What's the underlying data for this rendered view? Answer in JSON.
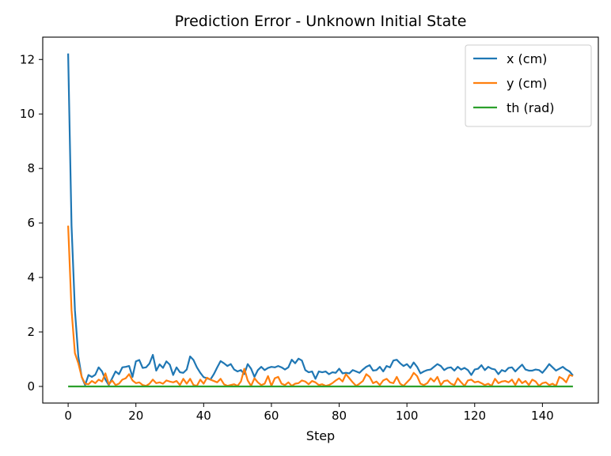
{
  "chart_data": {
    "type": "line",
    "title": "Prediction Error - Unknown Initial State",
    "xlabel": "Step",
    "ylabel": "",
    "xlim": [
      -7.5,
      156.5
    ],
    "ylim": [
      -0.61,
      12.82
    ],
    "xticks": [
      0,
      20,
      40,
      60,
      80,
      100,
      120,
      140
    ],
    "yticks": [
      0,
      2,
      4,
      6,
      8,
      10,
      12
    ],
    "grid": false,
    "legend_position": "top-right",
    "x": [
      0,
      1,
      2,
      3,
      4,
      5,
      6,
      7,
      8,
      9,
      10,
      11,
      12,
      13,
      14,
      15,
      16,
      17,
      18,
      19,
      20,
      21,
      22,
      23,
      24,
      25,
      26,
      27,
      28,
      29,
      30,
      31,
      32,
      33,
      34,
      35,
      36,
      37,
      38,
      39,
      40,
      41,
      42,
      43,
      44,
      45,
      46,
      47,
      48,
      49,
      50,
      51,
      52,
      53,
      54,
      55,
      56,
      57,
      58,
      59,
      60,
      61,
      62,
      63,
      64,
      65,
      66,
      67,
      68,
      69,
      70,
      71,
      72,
      73,
      74,
      75,
      76,
      77,
      78,
      79,
      80,
      81,
      82,
      83,
      84,
      85,
      86,
      87,
      88,
      89,
      90,
      91,
      92,
      93,
      94,
      95,
      96,
      97,
      98,
      99,
      100,
      101,
      102,
      103,
      104,
      105,
      106,
      107,
      108,
      109,
      110,
      111,
      112,
      113,
      114,
      115,
      116,
      117,
      118,
      119,
      120,
      121,
      122,
      123,
      124,
      125,
      126,
      127,
      128,
      129,
      130,
      131,
      132,
      133,
      134,
      135,
      136,
      137,
      138,
      139,
      140,
      141,
      142,
      143,
      144,
      145,
      146,
      147,
      148,
      149
    ],
    "series": [
      {
        "name": "x (cm)",
        "color": "#1f77b4",
        "values": [
          12.22,
          5.9,
          2.8,
          1.1,
          0.35,
          0.05,
          0.42,
          0.35,
          0.43,
          0.7,
          0.55,
          0.25,
          0.05,
          0.3,
          0.55,
          0.45,
          0.7,
          0.72,
          0.75,
          0.35,
          0.92,
          0.97,
          0.68,
          0.7,
          0.84,
          1.16,
          0.58,
          0.81,
          0.68,
          0.92,
          0.8,
          0.42,
          0.7,
          0.52,
          0.5,
          0.62,
          1.1,
          0.97,
          0.7,
          0.5,
          0.34,
          0.3,
          0.25,
          0.45,
          0.7,
          0.93,
          0.85,
          0.75,
          0.82,
          0.62,
          0.55,
          0.6,
          0.45,
          0.82,
          0.65,
          0.35,
          0.6,
          0.72,
          0.6,
          0.68,
          0.72,
          0.7,
          0.75,
          0.7,
          0.62,
          0.7,
          0.98,
          0.85,
          1.02,
          0.95,
          0.6,
          0.52,
          0.55,
          0.28,
          0.55,
          0.52,
          0.55,
          0.45,
          0.52,
          0.5,
          0.65,
          0.48,
          0.5,
          0.48,
          0.6,
          0.55,
          0.5,
          0.62,
          0.72,
          0.78,
          0.58,
          0.6,
          0.72,
          0.55,
          0.75,
          0.7,
          0.95,
          0.98,
          0.85,
          0.75,
          0.82,
          0.68,
          0.88,
          0.72,
          0.48,
          0.55,
          0.6,
          0.62,
          0.72,
          0.82,
          0.75,
          0.6,
          0.68,
          0.7,
          0.58,
          0.72,
          0.62,
          0.68,
          0.6,
          0.42,
          0.62,
          0.65,
          0.78,
          0.6,
          0.72,
          0.65,
          0.62,
          0.45,
          0.6,
          0.55,
          0.68,
          0.7,
          0.55,
          0.68,
          0.8,
          0.62,
          0.58,
          0.58,
          0.62,
          0.6,
          0.5,
          0.65,
          0.82,
          0.7,
          0.58,
          0.65,
          0.72,
          0.62,
          0.55,
          0.4
        ]
      },
      {
        "name": "y (cm)",
        "color": "#ff7f0e",
        "values": [
          5.9,
          2.8,
          1.22,
          0.85,
          0.35,
          0.1,
          0.08,
          0.2,
          0.12,
          0.25,
          0.18,
          0.48,
          0.08,
          0.22,
          0.05,
          0.1,
          0.25,
          0.3,
          0.45,
          0.22,
          0.12,
          0.15,
          0.05,
          0.02,
          0.1,
          0.25,
          0.12,
          0.15,
          0.1,
          0.22,
          0.18,
          0.15,
          0.2,
          0.05,
          0.28,
          0.1,
          0.28,
          0.05,
          0.02,
          0.25,
          0.1,
          0.32,
          0.25,
          0.2,
          0.15,
          0.28,
          0.08,
          0.02,
          0.05,
          0.08,
          0.02,
          0.18,
          0.65,
          0.22,
          0.02,
          0.3,
          0.15,
          0.05,
          0.1,
          0.38,
          0.02,
          0.3,
          0.35,
          0.1,
          0.05,
          0.15,
          0.02,
          0.1,
          0.12,
          0.22,
          0.18,
          0.08,
          0.2,
          0.15,
          0.05,
          0.08,
          0.02,
          0.05,
          0.12,
          0.22,
          0.3,
          0.18,
          0.45,
          0.3,
          0.15,
          0.02,
          0.1,
          0.2,
          0.45,
          0.35,
          0.12,
          0.18,
          0.05,
          0.22,
          0.28,
          0.15,
          0.12,
          0.35,
          0.1,
          0.02,
          0.15,
          0.28,
          0.5,
          0.38,
          0.1,
          0.05,
          0.12,
          0.3,
          0.18,
          0.35,
          0.05,
          0.2,
          0.22,
          0.1,
          0.05,
          0.3,
          0.15,
          0.02,
          0.22,
          0.25,
          0.15,
          0.18,
          0.12,
          0.05,
          0.1,
          0.02,
          0.28,
          0.12,
          0.18,
          0.2,
          0.15,
          0.25,
          0.05,
          0.28,
          0.12,
          0.2,
          0.05,
          0.25,
          0.18,
          0.02,
          0.12,
          0.15,
          0.05,
          0.1,
          0.02,
          0.35,
          0.28,
          0.15,
          0.42,
          0.38
        ]
      },
      {
        "name": "th (rad)",
        "color": "#2ca02c",
        "values": [
          0,
          0,
          0,
          0,
          0,
          0,
          0,
          0,
          0,
          0,
          0,
          0,
          0,
          0,
          0,
          0,
          0,
          0,
          0,
          0,
          0,
          0,
          0,
          0,
          0,
          0,
          0,
          0,
          0,
          0,
          0,
          0,
          0,
          0,
          0,
          0,
          0,
          0,
          0,
          0,
          0,
          0,
          0,
          0,
          0,
          0,
          0,
          0,
          0,
          0,
          0,
          0,
          0,
          0,
          0,
          0,
          0,
          0,
          0,
          0,
          0,
          0,
          0,
          0,
          0,
          0,
          0,
          0,
          0,
          0,
          0,
          0,
          0,
          0,
          0,
          0,
          0,
          0,
          0,
          0,
          0,
          0,
          0,
          0,
          0,
          0,
          0,
          0,
          0,
          0,
          0,
          0,
          0,
          0,
          0,
          0,
          0,
          0,
          0,
          0,
          0,
          0,
          0,
          0,
          0,
          0,
          0,
          0,
          0,
          0,
          0,
          0,
          0,
          0,
          0,
          0,
          0,
          0,
          0,
          0,
          0,
          0,
          0,
          0,
          0,
          0,
          0,
          0,
          0,
          0,
          0,
          0,
          0,
          0,
          0,
          0,
          0,
          0,
          0,
          0,
          0,
          0,
          0,
          0,
          0,
          0,
          0,
          0,
          0,
          0
        ]
      }
    ]
  }
}
